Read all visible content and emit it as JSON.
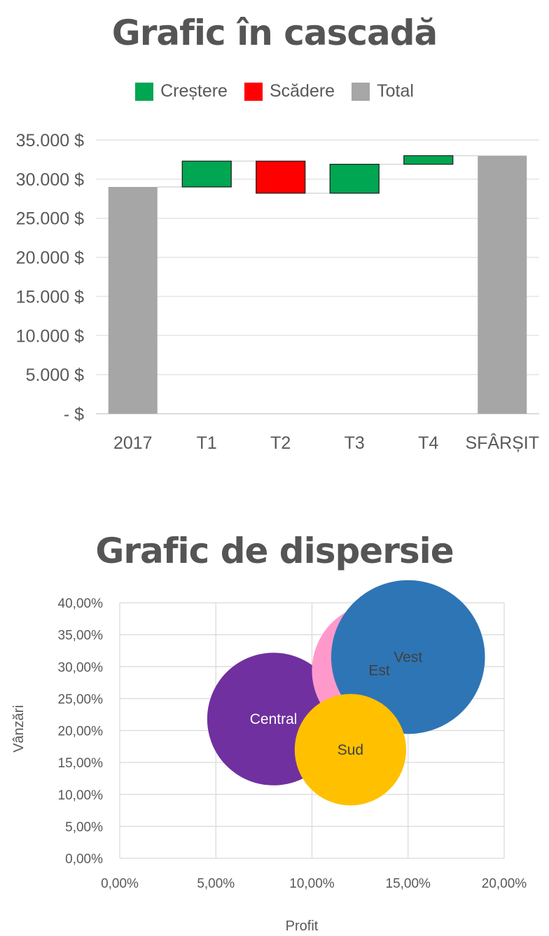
{
  "waterfall": {
    "title": "Grafic în cascadă",
    "legend": [
      {
        "label": "Creștere",
        "color": "#00A651"
      },
      {
        "label": "Scădere",
        "color": "#FF0000"
      },
      {
        "label": "Total",
        "color": "#A6A6A6"
      }
    ]
  },
  "scatter": {
    "title": "Grafic de dispersie"
  },
  "chart_data": [
    {
      "type": "bar",
      "subtype": "waterfall",
      "title": "Grafic în cascadă",
      "categories": [
        "2017",
        "T1",
        "T2",
        "T3",
        "T4",
        "SFÂRȘIT"
      ],
      "bars": [
        {
          "category": "2017",
          "kind": "total",
          "start": 0,
          "end": 29000
        },
        {
          "category": "T1",
          "kind": "increase",
          "start": 29000,
          "end": 32300
        },
        {
          "category": "T2",
          "kind": "decrease",
          "start": 32300,
          "end": 28200
        },
        {
          "category": "T3",
          "kind": "increase",
          "start": 28200,
          "end": 31900
        },
        {
          "category": "T4",
          "kind": "increase",
          "start": 31900,
          "end": 33000
        },
        {
          "category": "SFÂRȘIT",
          "kind": "total",
          "start": 0,
          "end": 33000
        }
      ],
      "ylim": [
        0,
        35000
      ],
      "yticks": [
        0,
        5000,
        10000,
        15000,
        20000,
        25000,
        30000,
        35000
      ],
      "ytick_labels": [
        "- $",
        "5.000 $",
        "10.000 $",
        "15.000 $",
        "20.000 $",
        "25.000 $",
        "30.000 $",
        "35.000 $"
      ],
      "colors": {
        "increase": "#00A651",
        "decrease": "#FF0000",
        "total": "#A6A6A6"
      },
      "grid": true,
      "legend": "top"
    },
    {
      "type": "scatter",
      "subtype": "bubble",
      "title": "Grafic de dispersie",
      "xlabel": "Profit",
      "ylabel": "Vânzări",
      "xlim": [
        0,
        20
      ],
      "ylim": [
        0,
        40
      ],
      "xticks": [
        0,
        5,
        10,
        15,
        20
      ],
      "xtick_labels": [
        "0,00%",
        "5,00%",
        "10,00%",
        "15,00%",
        "20,00%"
      ],
      "yticks": [
        0,
        5,
        10,
        15,
        20,
        25,
        30,
        35,
        40
      ],
      "ytick_labels": [
        "0,00%",
        "5,00%",
        "10,00%",
        "15,00%",
        "20,00%",
        "25,00%",
        "30,00%",
        "35,00%",
        "40,00%"
      ],
      "points": [
        {
          "label": "Central",
          "x": 8.0,
          "y": 21.8,
          "size": 6.9,
          "color": "#7030A0",
          "text_color": "#FFFFFF"
        },
        {
          "label": "Est",
          "x": 13.5,
          "y": 29.4,
          "size": 7.0,
          "color": "#FF99CC",
          "text_color": "#404040"
        },
        {
          "label": "Vest",
          "x": 15.0,
          "y": 31.5,
          "size": 8.0,
          "color": "#2E75B6",
          "text_color": "#404040"
        },
        {
          "label": "Sud",
          "x": 12.0,
          "y": 17.0,
          "size": 5.8,
          "color": "#FFC000",
          "text_color": "#404040"
        }
      ],
      "grid": true,
      "legend": "none"
    }
  ]
}
